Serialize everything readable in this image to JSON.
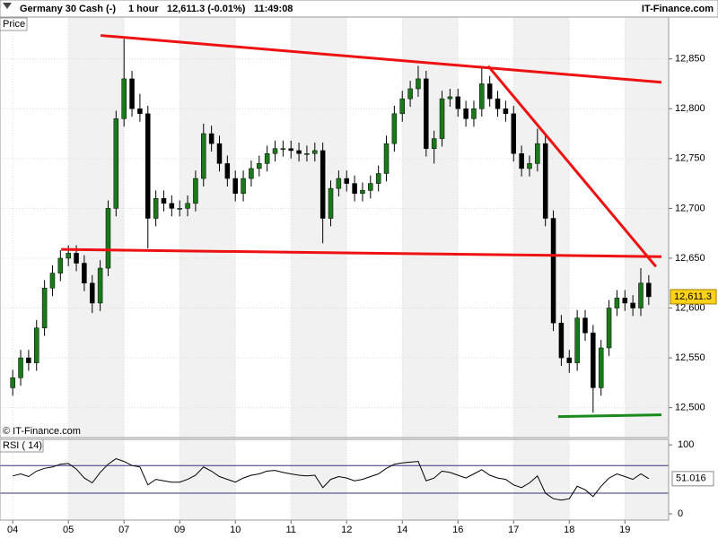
{
  "header": {
    "instrument": "Germany 30 Cash (-)",
    "interval": "1 hour",
    "quote": "12,611.3 (-0.01%)",
    "time": "11:49:08",
    "brand": "IT-Finance.com"
  },
  "chart_data": [
    {
      "type": "candlestick",
      "panel_label": "Price",
      "watermark": "© IT-Finance.com",
      "x": [
        0,
        1,
        2,
        3,
        4,
        5,
        6,
        7,
        8,
        9,
        10,
        11,
        12,
        13,
        14,
        15,
        16,
        17,
        18,
        19,
        20,
        21,
        22,
        23,
        24,
        25,
        26,
        27,
        28,
        29,
        30,
        31,
        32,
        33,
        34,
        35,
        36,
        37,
        38,
        39,
        40,
        41,
        42,
        43,
        44,
        45,
        46,
        47,
        48,
        49,
        50,
        51,
        52,
        53,
        54,
        55,
        56,
        57,
        58,
        59,
        60,
        61,
        62,
        63,
        64,
        65,
        66,
        67,
        68,
        69,
        70,
        71,
        72,
        73,
        74,
        75,
        76,
        77,
        78,
        79,
        80
      ],
      "open": [
        12520,
        12530,
        12550,
        12545,
        12580,
        12620,
        12635,
        12650,
        12655,
        12645,
        12625,
        12605,
        12640,
        12700,
        12790,
        12830,
        12800,
        12795,
        12690,
        12710,
        12705,
        12700,
        12700,
        12705,
        12730,
        12775,
        12765,
        12745,
        12730,
        12715,
        12730,
        12740,
        12745,
        12755,
        12760,
        12760,
        12758,
        12755,
        12755,
        12758,
        12690,
        12720,
        12730,
        12725,
        12715,
        12718,
        12725,
        12735,
        12765,
        12795,
        12810,
        12820,
        12830,
        12760,
        12770,
        12810,
        12812,
        12800,
        12790,
        12800,
        12825,
        12810,
        12800,
        12795,
        12755,
        12740,
        12745,
        12765,
        12690,
        12585,
        12550,
        12545,
        12590,
        12575,
        12520,
        12560,
        12600,
        12610,
        12605,
        12600,
        12625
      ],
      "high": [
        12538,
        12558,
        12558,
        12588,
        12628,
        12643,
        12658,
        12663,
        12663,
        12653,
        12633,
        12648,
        12708,
        12798,
        12870,
        12838,
        12815,
        12803,
        12718,
        12718,
        12713,
        12708,
        12713,
        12738,
        12785,
        12783,
        12773,
        12753,
        12738,
        12738,
        12748,
        12753,
        12763,
        12768,
        12768,
        12768,
        12766,
        12763,
        12766,
        12766,
        12728,
        12738,
        12738,
        12733,
        12726,
        12733,
        12743,
        12773,
        12803,
        12818,
        12828,
        12843,
        12838,
        12778,
        12818,
        12820,
        12820,
        12808,
        12808,
        12843,
        12833,
        12818,
        12808,
        12803,
        12763,
        12753,
        12780,
        12773,
        12698,
        12593,
        12558,
        12598,
        12598,
        12583,
        12568,
        12608,
        12618,
        12618,
        12613,
        12640,
        12633
      ],
      "low": [
        12512,
        12522,
        12537,
        12537,
        12572,
        12612,
        12627,
        12642,
        12637,
        12617,
        12595,
        12597,
        12632,
        12692,
        12782,
        12792,
        12787,
        12660,
        12682,
        12697,
        12692,
        12692,
        12692,
        12697,
        12722,
        12757,
        12737,
        12722,
        12707,
        12707,
        12722,
        12732,
        12737,
        12747,
        12752,
        12750,
        12747,
        12747,
        12747,
        12665,
        12682,
        12712,
        12717,
        12707,
        12707,
        12710,
        12717,
        12727,
        12757,
        12787,
        12802,
        12812,
        12752,
        12745,
        12762,
        12802,
        12792,
        12782,
        12782,
        12792,
        12802,
        12792,
        12787,
        12747,
        12732,
        12732,
        12737,
        12682,
        12577,
        12542,
        12535,
        12537,
        12567,
        12495,
        12512,
        12552,
        12592,
        12597,
        12592,
        12592,
        12603
      ],
      "close": [
        12530,
        12550,
        12545,
        12580,
        12620,
        12635,
        12650,
        12655,
        12645,
        12625,
        12605,
        12640,
        12700,
        12790,
        12830,
        12800,
        12795,
        12690,
        12710,
        12705,
        12700,
        12700,
        12705,
        12730,
        12775,
        12765,
        12745,
        12730,
        12715,
        12730,
        12740,
        12745,
        12755,
        12760,
        12760,
        12758,
        12755,
        12755,
        12758,
        12690,
        12720,
        12730,
        12725,
        12715,
        12718,
        12725,
        12735,
        12765,
        12795,
        12810,
        12820,
        12830,
        12760,
        12770,
        12810,
        12812,
        12800,
        12790,
        12800,
        12825,
        12810,
        12800,
        12795,
        12755,
        12740,
        12745,
        12765,
        12690,
        12585,
        12550,
        12545,
        12590,
        12575,
        12520,
        12560,
        12600,
        12610,
        12605,
        12600,
        12625,
        12611.3
      ],
      "up_color": "#1a7a1a",
      "down_color": "#000000",
      "last_value_label": "12,611.3",
      "xlim": [
        -1.6,
        82.5
      ],
      "xticks": [
        {
          "value": 0,
          "label": "04"
        },
        {
          "value": 7,
          "label": "05"
        },
        {
          "value": 14,
          "label": "07"
        },
        {
          "value": 21,
          "label": "09"
        },
        {
          "value": 28,
          "label": "10"
        },
        {
          "value": 35,
          "label": "11"
        },
        {
          "value": 42,
          "label": "12"
        },
        {
          "value": 49,
          "label": "14"
        },
        {
          "value": 56,
          "label": "16"
        },
        {
          "value": 63,
          "label": "17"
        },
        {
          "value": 70,
          "label": "18"
        },
        {
          "value": 77,
          "label": "19"
        }
      ],
      "ylim": [
        12470,
        12892
      ],
      "yticks": [
        {
          "value": 12500,
          "label": "12,500"
        },
        {
          "value": 12550,
          "label": "12,550"
        },
        {
          "value": 12600,
          "label": "12,600"
        },
        {
          "value": 12650,
          "label": "12,650"
        },
        {
          "value": 12700,
          "label": "12,700"
        },
        {
          "value": 12750,
          "label": "12,750"
        },
        {
          "value": 12800,
          "label": "12,800"
        },
        {
          "value": 12850,
          "label": "12,850"
        }
      ],
      "grid": true,
      "trendlines": [
        {
          "color": "#ee1111",
          "points": [
            [
              11.06,
              12873.5
            ],
            [
              81.6,
              12826.5
            ]
          ]
        },
        {
          "color": "#ee1111",
          "points": [
            [
              59.8,
              12842.8
            ],
            [
              80.9,
              12641.6
            ]
          ]
        },
        {
          "color": "#ee1111",
          "points": [
            [
              6.1,
              12658.8
            ],
            [
              81.6,
              12651.5
            ]
          ]
        },
        {
          "color": "#1a8a1a",
          "points": [
            [
              68.6,
              12491
            ],
            [
              81.6,
              12492.8
            ]
          ]
        }
      ]
    },
    {
      "type": "line",
      "panel_label": "RSI ( 14)",
      "color": "#000000",
      "values": [
        55,
        58,
        54,
        62,
        66,
        68,
        72,
        73,
        65,
        52,
        45,
        60,
        72,
        80,
        76,
        70,
        68,
        42,
        50,
        48,
        46,
        46,
        50,
        56,
        68,
        62,
        54,
        50,
        46,
        52,
        56,
        58,
        62,
        63,
        60,
        58,
        56,
        55,
        56,
        38,
        50,
        54,
        52,
        48,
        50,
        54,
        58,
        66,
        72,
        74,
        75,
        76,
        48,
        52,
        62,
        60,
        56,
        52,
        58,
        64,
        56,
        52,
        50,
        42,
        38,
        45,
        55,
        30,
        22,
        20,
        22,
        40,
        35,
        25,
        40,
        52,
        58,
        54,
        50,
        58,
        51.016
      ],
      "ylim": [
        -9,
        108
      ],
      "yticks": [
        0,
        100
      ],
      "levels": [
        30,
        70
      ],
      "level_color": "#33337a"
    }
  ]
}
